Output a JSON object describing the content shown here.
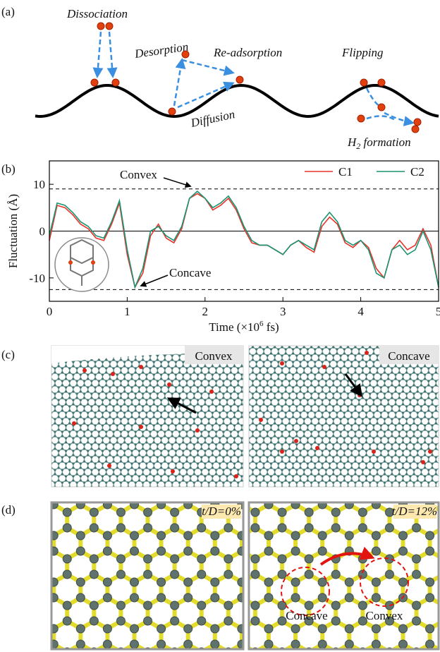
{
  "panel_a": {
    "label": "(a)",
    "dissociation": "Dissociation",
    "desorption": "Desorption",
    "readsorption": "Re-adsorption",
    "flipping": "Flipping",
    "diffusion": "Diffusion",
    "h2": {
      "main": "H",
      "sub": "2",
      "rest": " formation"
    }
  },
  "chart_data": {
    "type": "line",
    "panel_label": "(b)",
    "ylabel": "Fluctuation (Å)",
    "xlabel": {
      "pre": "Time (×10",
      "sup": "6",
      "post": " fs)"
    },
    "xlim": [
      0,
      5
    ],
    "xticks": [
      0,
      1,
      2,
      3,
      4,
      5
    ],
    "ylim": [
      -15,
      15
    ],
    "yticks": [
      -10,
      0,
      10
    ],
    "zero_line": 0,
    "reference_lines": [
      9,
      -12.5
    ],
    "annotations": [
      "Convex",
      "Concave"
    ],
    "x": [
      0,
      0.1,
      0.2,
      0.3,
      0.4,
      0.5,
      0.6,
      0.7,
      0.8,
      0.9,
      1.0,
      1.1,
      1.2,
      1.3,
      1.4,
      1.5,
      1.6,
      1.7,
      1.8,
      1.9,
      2.0,
      2.1,
      2.2,
      2.3,
      2.4,
      2.5,
      2.6,
      2.7,
      2.8,
      2.9,
      3.0,
      3.1,
      3.2,
      3.3,
      3.4,
      3.5,
      3.6,
      3.7,
      3.8,
      3.9,
      4.0,
      4.1,
      4.2,
      4.3,
      4.4,
      4.5,
      4.6,
      4.7,
      4.8,
      4.9,
      5.0
    ],
    "series": [
      {
        "name": "C1",
        "color": "#e8322a",
        "values": [
          -2,
          5.5,
          5,
          3.5,
          1.5,
          0.5,
          -1.5,
          -2,
          1.5,
          6,
          -5,
          -12,
          -9,
          -1,
          1.5,
          -1.5,
          -2.5,
          0.5,
          7,
          8,
          7,
          4.5,
          5.5,
          7,
          4.5,
          0.5,
          -2.5,
          -3,
          -3,
          -4,
          -5,
          -3,
          -2,
          -3.5,
          -4.5,
          1,
          3,
          1.5,
          -2.5,
          -3.5,
          -2,
          -3.5,
          -8,
          -10,
          -4,
          -2,
          -4,
          -3,
          0.5,
          -3,
          -12
        ]
      },
      {
        "name": "C2",
        "color": "#1a9471",
        "values": [
          -1,
          6,
          5.5,
          4,
          2,
          1,
          -1,
          -1.5,
          2,
          6.5,
          -4,
          -12,
          -8,
          0,
          1,
          -1,
          -2,
          1,
          7,
          8.5,
          7,
          5,
          6,
          7.5,
          5,
          1,
          -2,
          -3,
          -3,
          -4,
          -5,
          -3,
          -2,
          -3,
          -4,
          2,
          4,
          2,
          -2,
          -3,
          -2,
          -4,
          -9,
          -10,
          -4,
          -3,
          -5,
          -4,
          0,
          -4,
          -12
        ]
      }
    ]
  },
  "panel_c": {
    "label": "(c)",
    "left": "Convex",
    "right": "Concave"
  },
  "panel_d": {
    "label": "(d)",
    "left_tag": "t/D=0%",
    "right_tag": "t/D=12%",
    "concave": "Concave",
    "convex": "Convex"
  }
}
